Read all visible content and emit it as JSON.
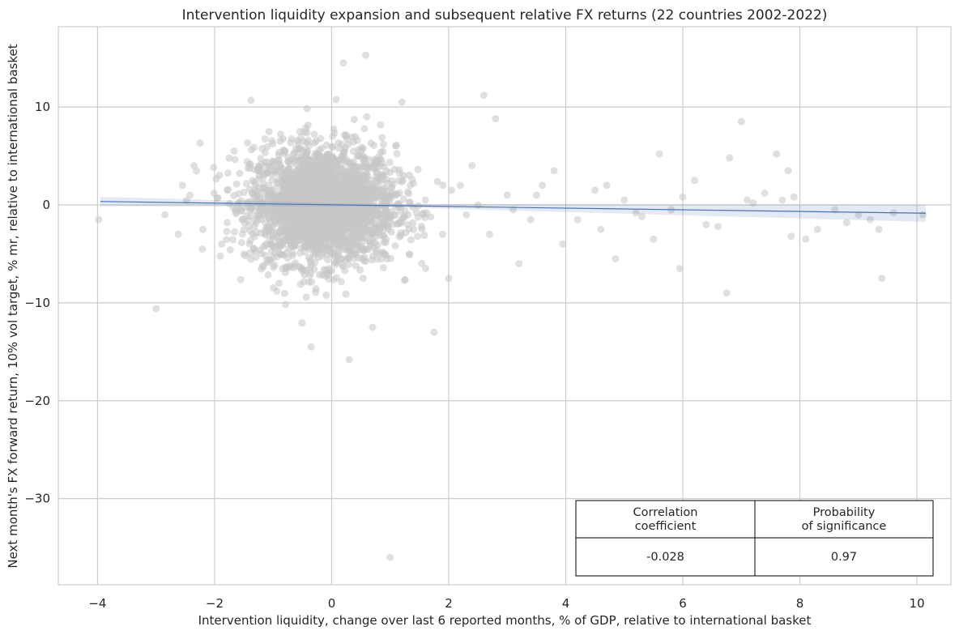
{
  "chart_data": {
    "type": "scatter",
    "title": "Intervention liquidity expansion and subsequent relative FX returns (22 countries 2002-2022)",
    "xlabel": "Intervention liquidity, change over last 6 reported months, % of GDP, relative to international basket",
    "ylabel": "Next month's FX forward return, 10% vol target, % mr, relative to international basket",
    "xlim": [
      -4.67,
      10.58
    ],
    "ylim": [
      -38.8,
      18.2
    ],
    "xticks": [
      -4,
      -2,
      0,
      2,
      4,
      6,
      8,
      10
    ],
    "xtick_labels": [
      "−4",
      "−2",
      "0",
      "2",
      "4",
      "6",
      "8",
      "10"
    ],
    "yticks": [
      -30,
      -20,
      -10,
      0,
      10
    ],
    "ytick_labels": [
      "−30",
      "−20",
      "−10",
      "0",
      "10"
    ],
    "grid": true,
    "point_color": "#c7c7c7",
    "regression_color": "#4c72b0",
    "regression": {
      "x": [
        -3.95,
        10.15
      ],
      "y": [
        0.35,
        -0.85
      ],
      "ci_halfwidth": [
        0.45,
        0.75
      ]
    },
    "points": {
      "x": [
        -3.98,
        -3.0,
        -2.85,
        -2.62,
        -2.55,
        -2.42,
        -2.35,
        -2.2,
        -1.78,
        -1.35,
        -1.12,
        -1.02,
        -0.82,
        -0.72,
        -0.62,
        -0.48,
        -0.4,
        -0.3,
        -0.22,
        -0.1,
        0.05,
        0.15,
        0.25,
        0.38,
        0.52,
        0.8,
        1.0,
        0.58,
        0.2,
        1.1,
        1.3,
        1.6,
        1.75,
        1.9,
        2.0,
        2.05,
        2.3,
        2.5,
        2.6,
        2.8,
        3.0,
        3.2,
        3.4,
        3.6,
        3.8,
        3.95,
        4.7,
        4.85,
        5.0,
        5.5,
        5.6,
        5.8,
        5.95,
        6.2,
        6.4,
        6.75,
        7.0,
        7.1,
        7.6,
        7.8,
        7.85,
        7.9,
        8.3,
        8.6,
        9.2,
        9.35,
        9.4,
        10.1,
        4.6,
        5.3,
        6.0,
        6.8,
        7.2,
        7.7,
        8.1,
        9.0,
        2.4,
        3.1,
        0.6,
        -0.9,
        -1.5,
        0.95,
        1.4,
        2.2,
        2.7,
        3.5,
        4.2,
        4.5,
        5.2,
        6.6,
        7.4,
        8.8,
        9.6,
        -0.35,
        0.3,
        0.7,
        1.2
      ],
      "y": [
        -1.5,
        -10.6,
        -1.0,
        -3.0,
        2.0,
        1.0,
        4.0,
        -2.5,
        1.5,
        2.5,
        -4.0,
        0.5,
        -1.2,
        3.2,
        -2.8,
        1.8,
        -0.5,
        2.2,
        -3.5,
        0.8,
        -1.8,
        3.0,
        -2.2,
        1.2,
        -0.8,
        2.8,
        -36.0,
        15.3,
        14.5,
        1.0,
        -2.0,
        0.5,
        -13.0,
        2.0,
        -7.5,
        1.5,
        -1.0,
        0.0,
        11.2,
        8.8,
        1.0,
        -6.0,
        -1.5,
        2.0,
        3.5,
        -4.0,
        2.0,
        -5.5,
        0.5,
        -3.5,
        5.2,
        -0.5,
        -6.5,
        2.5,
        -2.0,
        -9.0,
        8.5,
        0.5,
        5.2,
        3.5,
        -3.2,
        0.8,
        -2.5,
        -0.5,
        -1.5,
        -2.5,
        -7.5,
        -1.0,
        -2.5,
        -1.2,
        0.8,
        4.8,
        0.2,
        0.5,
        -3.5,
        -1.0,
        4.0,
        -0.5,
        9.0,
        -8.0,
        -5.0,
        -5.5,
        -2.5,
        2.0,
        -3.0,
        1.0,
        -1.5,
        1.5,
        -0.8,
        -2.2,
        1.2,
        -1.8,
        -0.8,
        -14.5,
        -15.8,
        -12.5,
        10.5
      ],
      "dense_cluster": {
        "n": 2600,
        "x_center": -0.15,
        "x_spread": 0.62,
        "y_center": 0.0,
        "y_spread": 3.0
      }
    },
    "stats_table": {
      "headers": [
        "Correlation\ncoefficient",
        "Probability\nof significance"
      ],
      "values": [
        "-0.028",
        "0.97"
      ]
    }
  }
}
